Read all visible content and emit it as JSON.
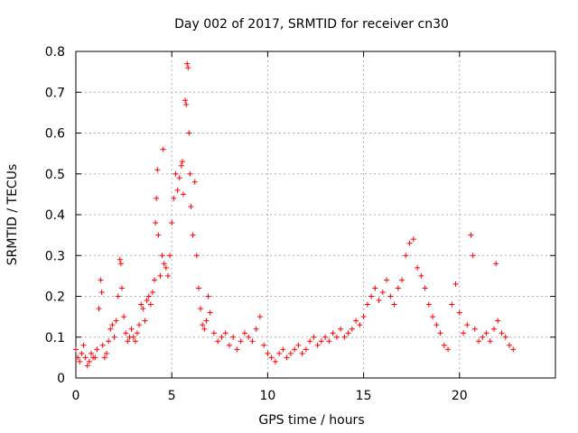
{
  "chart_data": {
    "type": "scatter",
    "title": "Day 002 of 2017, SRMTID for receiver cn30",
    "xlabel": "GPS time / hours",
    "ylabel": "SRMTID / TECUs",
    "xlim": [
      0,
      25
    ],
    "ylim": [
      0,
      0.8
    ],
    "xticks": [
      0,
      5,
      10,
      15,
      20
    ],
    "xtick_labels": [
      "0",
      "5",
      "10",
      "15",
      "20"
    ],
    "yticks": [
      0,
      0.1,
      0.2,
      0.3,
      0.4,
      0.5,
      0.6,
      0.7,
      0.8
    ],
    "ytick_labels": [
      "0",
      "0.1",
      "0.2",
      "0.3",
      "0.4",
      "0.5",
      "0.6",
      "0.7",
      "0.8"
    ],
    "grid": true,
    "marker": "+",
    "marker_color": "#ff0000",
    "series": [
      {
        "name": "SRMTID",
        "color": "#ff0000",
        "points": [
          [
            0.0,
            0.07
          ],
          [
            0.1,
            0.05
          ],
          [
            0.2,
            0.04
          ],
          [
            0.3,
            0.06
          ],
          [
            0.4,
            0.08
          ],
          [
            0.5,
            0.05
          ],
          [
            0.6,
            0.03
          ],
          [
            0.7,
            0.04
          ],
          [
            0.8,
            0.06
          ],
          [
            0.9,
            0.05
          ],
          [
            1.0,
            0.05
          ],
          [
            1.1,
            0.07
          ],
          [
            1.2,
            0.17
          ],
          [
            1.3,
            0.24
          ],
          [
            1.35,
            0.21
          ],
          [
            1.4,
            0.08
          ],
          [
            1.5,
            0.05
          ],
          [
            1.6,
            0.06
          ],
          [
            1.7,
            0.09
          ],
          [
            1.8,
            0.12
          ],
          [
            1.9,
            0.13
          ],
          [
            2.0,
            0.1
          ],
          [
            2.1,
            0.14
          ],
          [
            2.2,
            0.2
          ],
          [
            2.3,
            0.29
          ],
          [
            2.35,
            0.28
          ],
          [
            2.4,
            0.22
          ],
          [
            2.5,
            0.15
          ],
          [
            2.6,
            0.11
          ],
          [
            2.7,
            0.09
          ],
          [
            2.8,
            0.1
          ],
          [
            2.9,
            0.12
          ],
          [
            3.0,
            0.1
          ],
          [
            3.1,
            0.09
          ],
          [
            3.2,
            0.11
          ],
          [
            3.3,
            0.13
          ],
          [
            3.4,
            0.18
          ],
          [
            3.5,
            0.17
          ],
          [
            3.6,
            0.14
          ],
          [
            3.7,
            0.19
          ],
          [
            3.8,
            0.2
          ],
          [
            3.9,
            0.18
          ],
          [
            4.0,
            0.21
          ],
          [
            4.1,
            0.24
          ],
          [
            4.15,
            0.38
          ],
          [
            4.2,
            0.44
          ],
          [
            4.25,
            0.51
          ],
          [
            4.3,
            0.35
          ],
          [
            4.4,
            0.25
          ],
          [
            4.5,
            0.3
          ],
          [
            4.55,
            0.56
          ],
          [
            4.6,
            0.28
          ],
          [
            4.7,
            0.27
          ],
          [
            4.8,
            0.25
          ],
          [
            4.9,
            0.3
          ],
          [
            5.0,
            0.38
          ],
          [
            5.1,
            0.44
          ],
          [
            5.2,
            0.5
          ],
          [
            5.3,
            0.46
          ],
          [
            5.4,
            0.49
          ],
          [
            5.5,
            0.52
          ],
          [
            5.55,
            0.53
          ],
          [
            5.6,
            0.45
          ],
          [
            5.7,
            0.68
          ],
          [
            5.75,
            0.67
          ],
          [
            5.8,
            0.77
          ],
          [
            5.85,
            0.76
          ],
          [
            5.9,
            0.6
          ],
          [
            5.95,
            0.5
          ],
          [
            6.0,
            0.42
          ],
          [
            6.1,
            0.35
          ],
          [
            6.2,
            0.48
          ],
          [
            6.3,
            0.3
          ],
          [
            6.4,
            0.22
          ],
          [
            6.5,
            0.17
          ],
          [
            6.6,
            0.13
          ],
          [
            6.7,
            0.12
          ],
          [
            6.8,
            0.14
          ],
          [
            6.9,
            0.2
          ],
          [
            7.0,
            0.16
          ],
          [
            7.2,
            0.11
          ],
          [
            7.4,
            0.09
          ],
          [
            7.6,
            0.1
          ],
          [
            7.8,
            0.11
          ],
          [
            8.0,
            0.08
          ],
          [
            8.2,
            0.1
          ],
          [
            8.4,
            0.07
          ],
          [
            8.6,
            0.09
          ],
          [
            8.8,
            0.11
          ],
          [
            9.0,
            0.1
          ],
          [
            9.2,
            0.09
          ],
          [
            9.4,
            0.12
          ],
          [
            9.6,
            0.15
          ],
          [
            9.8,
            0.08
          ],
          [
            10.0,
            0.06
          ],
          [
            10.2,
            0.05
          ],
          [
            10.4,
            0.04
          ],
          [
            10.6,
            0.06
          ],
          [
            10.8,
            0.07
          ],
          [
            11.0,
            0.05
          ],
          [
            11.2,
            0.06
          ],
          [
            11.4,
            0.07
          ],
          [
            11.6,
            0.08
          ],
          [
            11.8,
            0.06
          ],
          [
            12.0,
            0.07
          ],
          [
            12.2,
            0.09
          ],
          [
            12.4,
            0.1
          ],
          [
            12.6,
            0.08
          ],
          [
            12.8,
            0.09
          ],
          [
            13.0,
            0.1
          ],
          [
            13.2,
            0.09
          ],
          [
            13.4,
            0.11
          ],
          [
            13.6,
            0.1
          ],
          [
            13.8,
            0.12
          ],
          [
            14.0,
            0.1
          ],
          [
            14.2,
            0.11
          ],
          [
            14.4,
            0.12
          ],
          [
            14.6,
            0.14
          ],
          [
            14.8,
            0.13
          ],
          [
            15.0,
            0.15
          ],
          [
            15.2,
            0.18
          ],
          [
            15.4,
            0.2
          ],
          [
            15.6,
            0.22
          ],
          [
            15.8,
            0.19
          ],
          [
            16.0,
            0.21
          ],
          [
            16.2,
            0.24
          ],
          [
            16.4,
            0.2
          ],
          [
            16.6,
            0.18
          ],
          [
            16.8,
            0.22
          ],
          [
            17.0,
            0.24
          ],
          [
            17.2,
            0.3
          ],
          [
            17.4,
            0.33
          ],
          [
            17.6,
            0.34
          ],
          [
            17.8,
            0.27
          ],
          [
            18.0,
            0.25
          ],
          [
            18.2,
            0.22
          ],
          [
            18.4,
            0.18
          ],
          [
            18.6,
            0.15
          ],
          [
            18.8,
            0.13
          ],
          [
            19.0,
            0.11
          ],
          [
            19.2,
            0.08
          ],
          [
            19.4,
            0.07
          ],
          [
            19.6,
            0.18
          ],
          [
            19.8,
            0.23
          ],
          [
            20.0,
            0.16
          ],
          [
            20.2,
            0.11
          ],
          [
            20.4,
            0.13
          ],
          [
            20.6,
            0.35
          ],
          [
            20.7,
            0.3
          ],
          [
            20.8,
            0.12
          ],
          [
            21.0,
            0.09
          ],
          [
            21.2,
            0.1
          ],
          [
            21.4,
            0.11
          ],
          [
            21.6,
            0.09
          ],
          [
            21.8,
            0.12
          ],
          [
            21.9,
            0.28
          ],
          [
            22.0,
            0.14
          ],
          [
            22.2,
            0.11
          ],
          [
            22.4,
            0.1
          ],
          [
            22.6,
            0.08
          ],
          [
            22.8,
            0.07
          ]
        ]
      }
    ]
  }
}
